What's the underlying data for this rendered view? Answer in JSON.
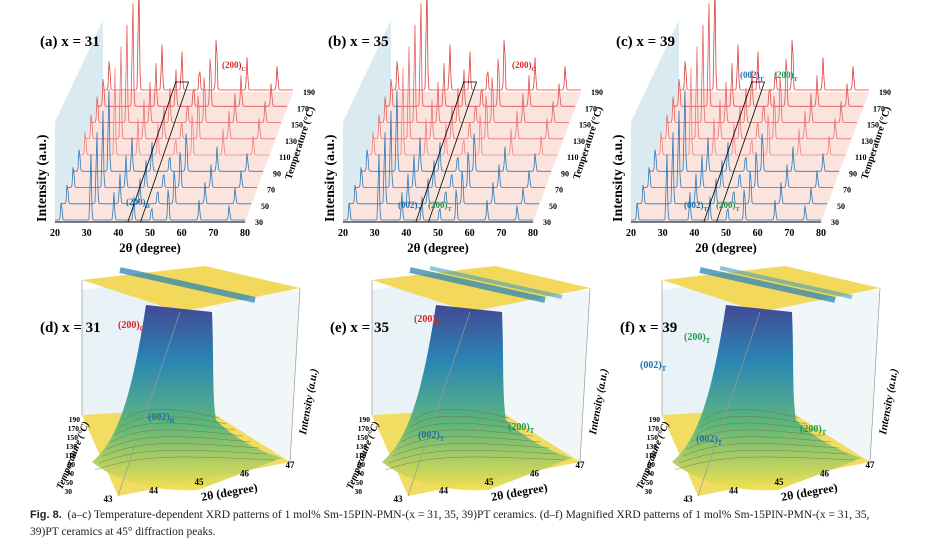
{
  "top_panels": [
    {
      "label": "(a) x = 31",
      "peaks": [
        {
          "main": "(200)",
          "sub": "C",
          "color": "#d62728"
        },
        {
          "main": "(200)",
          "sub": "R",
          "color": "#1f6fa8"
        }
      ]
    },
    {
      "label": "(b) x = 35",
      "peaks": [
        {
          "main": "(200)",
          "sub": "C",
          "color": "#d62728"
        },
        {
          "main": "(002)",
          "sub": "T",
          "color": "#1f6fa8"
        },
        {
          "main": "(200)",
          "sub": "T",
          "color": "#1a9a50"
        }
      ]
    },
    {
      "label": "(c) x = 39",
      "peaks": [
        {
          "main": "(002)",
          "sub": "T",
          "color": "#1f6fa8"
        },
        {
          "main": "(200)",
          "sub": "T",
          "color": "#1a9a50"
        },
        {
          "main": "(002)",
          "sub": "T",
          "color": "#1f6fa8"
        },
        {
          "main": "(200)",
          "sub": "T",
          "color": "#1a9a50"
        }
      ]
    }
  ],
  "top_axes": {
    "x_ticks": [
      "20",
      "30",
      "40",
      "50",
      "60",
      "70",
      "80"
    ],
    "x_label": "2θ (degree)",
    "y_label": "Intensity (a.u.)",
    "temp_ticks": [
      "30",
      "50",
      "70",
      "90",
      "110",
      "130",
      "150",
      "170",
      "190"
    ],
    "temp_label": "Temperature (°C)"
  },
  "bottom_panels": [
    {
      "label": "(d) x = 31",
      "peaks": [
        {
          "main": "(200)",
          "sub": "C",
          "color": "#d62728"
        },
        {
          "main": "(002)",
          "sub": "R",
          "color": "#1f6fa8"
        }
      ]
    },
    {
      "label": "(e) x = 35",
      "peaks": [
        {
          "main": "(200)",
          "sub": "C",
          "color": "#d62728"
        },
        {
          "main": "(002)",
          "sub": "T",
          "color": "#1f6fa8"
        },
        {
          "main": "(200)",
          "sub": "T",
          "color": "#1a9a50"
        }
      ]
    },
    {
      "label": "(f) x = 39",
      "peaks": [
        {
          "main": "(200)",
          "sub": "T",
          "color": "#1a9a50"
        },
        {
          "main": "(002)",
          "sub": "T",
          "color": "#1f6fa8"
        },
        {
          "main": "(002)",
          "sub": "T",
          "color": "#1f6fa8"
        },
        {
          "main": "(200)",
          "sub": "T",
          "color": "#1a9a50"
        }
      ]
    }
  ],
  "bottom_axes": {
    "x_ticks": [
      "43",
      "44",
      "45",
      "46",
      "47"
    ],
    "x_label": "2θ (degree)",
    "z_label": "Intensity (a.u.)",
    "temp_ticks": [
      "30",
      "50",
      "70",
      "90",
      "110",
      "130",
      "150",
      "170",
      "190"
    ],
    "temp_label": "Temperature (°C)"
  },
  "caption": {
    "label": "Fig. 8.",
    "text": "(a–c) Temperature-dependent XRD patterns of 1 mol% Sm-15PIN-PMN-(x = 31, 35, 39)PT ceramics. (d–f) Magnified XRD patterns of 1 mol% Sm-15PIN-PMN-(x = 31, 35, 39)PT ceramics at 45° diffraction peaks."
  }
}
